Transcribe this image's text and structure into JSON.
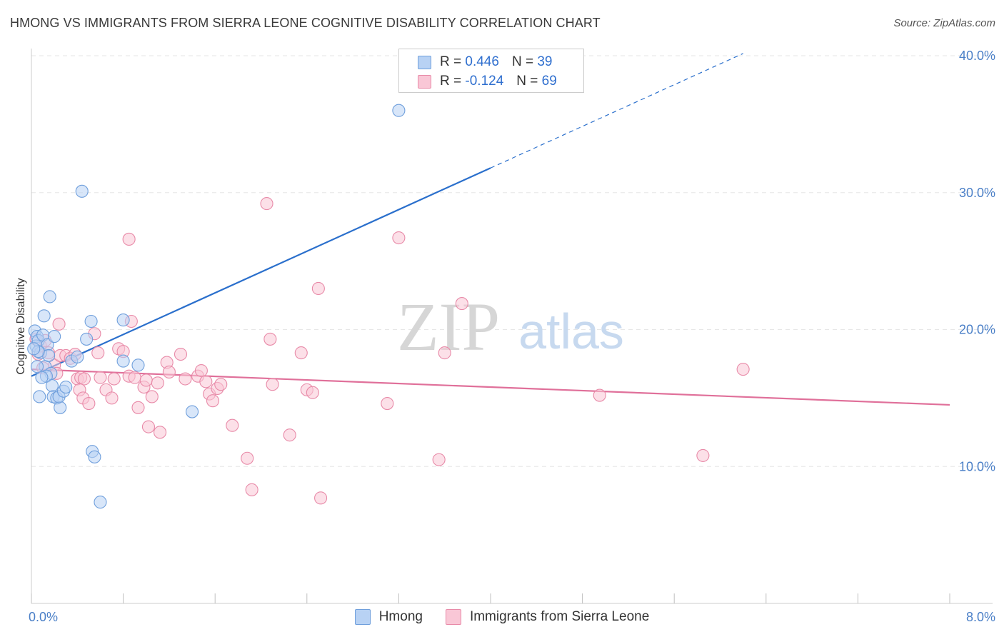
{
  "header": {
    "title": "HMONG VS IMMIGRANTS FROM SIERRA LEONE COGNITIVE DISABILITY CORRELATION CHART",
    "source": "Source: ZipAtlas.com"
  },
  "watermark": {
    "zip": "ZIP",
    "atlas": "atlas"
  },
  "legend": {
    "rows": [
      {
        "r_label": "R =",
        "r_value": "0.446",
        "n_label": "N =",
        "n_value": "39",
        "color": "#b8d2f4",
        "border": "#6f9fdc"
      },
      {
        "r_label": "R =",
        "r_value": "-0.124",
        "n_label": "N =",
        "n_value": "69",
        "color": "#f9c7d6",
        "border": "#e88aa8"
      }
    ]
  },
  "bottom_legend": [
    {
      "label": "Hmong",
      "color": "#b8d2f4",
      "border": "#6f9fdc"
    },
    {
      "label": "Immigrants from Sierra Leone",
      "color": "#f9c7d6",
      "border": "#e88aa8"
    }
  ],
  "chart_data": {
    "type": "scatter",
    "ylabel": "Cognitive Disability",
    "xlim": [
      0,
      8
    ],
    "ylim": [
      0,
      40
    ],
    "x_tick_labels": [
      {
        "value": 0,
        "label": "0.0%"
      },
      {
        "value": 8,
        "label": "8.0%"
      }
    ],
    "y_tick_labels": [
      {
        "value": 10,
        "label": "10.0%"
      },
      {
        "value": 20,
        "label": "20.0%"
      },
      {
        "value": 30,
        "label": "30.0%"
      },
      {
        "value": 40,
        "label": "40.0%"
      }
    ],
    "grid": true,
    "series": [
      {
        "name": "Hmong",
        "color": "#6f9fdc",
        "fill": "#b8d2f4",
        "trend_color": "#2a6fcc",
        "trend": {
          "x0": 0,
          "y0": 16.6,
          "x1": 4.0,
          "y1": 31.8,
          "dashed_to_x": 6.2
        },
        "points": [
          [
            0.03,
            19.9
          ],
          [
            0.05,
            19.5
          ],
          [
            0.04,
            18.8
          ],
          [
            0.06,
            19.2
          ],
          [
            0.08,
            18.3
          ],
          [
            0.1,
            19.6
          ],
          [
            0.12,
            17.3
          ],
          [
            0.14,
            18.9
          ],
          [
            0.15,
            18.1
          ],
          [
            0.17,
            16.8
          ],
          [
            0.13,
            16.6
          ],
          [
            0.09,
            16.5
          ],
          [
            0.11,
            21.0
          ],
          [
            0.16,
            22.4
          ],
          [
            0.2,
            19.5
          ],
          [
            0.18,
            15.9
          ],
          [
            0.19,
            15.1
          ],
          [
            0.22,
            15.0
          ],
          [
            0.25,
            14.3
          ],
          [
            0.24,
            15.1
          ],
          [
            0.28,
            15.5
          ],
          [
            0.3,
            15.8
          ],
          [
            0.07,
            15.1
          ],
          [
            0.05,
            17.3
          ],
          [
            0.35,
            17.7
          ],
          [
            0.4,
            18.0
          ],
          [
            0.48,
            19.3
          ],
          [
            0.52,
            20.6
          ],
          [
            0.44,
            30.1
          ],
          [
            0.8,
            20.7
          ],
          [
            0.8,
            17.7
          ],
          [
            0.93,
            17.4
          ],
          [
            1.4,
            14.0
          ],
          [
            0.53,
            11.1
          ],
          [
            0.55,
            10.7
          ],
          [
            0.6,
            7.4
          ],
          [
            3.2,
            36.0
          ],
          [
            0.06,
            18.4
          ],
          [
            0.02,
            18.6
          ]
        ]
      },
      {
        "name": "Immigrants from Sierra Leone",
        "color": "#e88aa8",
        "fill": "#f9c7d6",
        "trend_color": "#e0709a",
        "trend": {
          "x0": 0,
          "y0": 17.1,
          "x1": 8.0,
          "y1": 14.5
        },
        "points": [
          [
            0.04,
            19.3
          ],
          [
            0.06,
            18.2
          ],
          [
            0.08,
            18.8
          ],
          [
            0.12,
            19.2
          ],
          [
            0.15,
            18.3
          ],
          [
            0.2,
            17.4
          ],
          [
            0.22,
            16.8
          ],
          [
            0.25,
            18.1
          ],
          [
            0.24,
            20.4
          ],
          [
            0.3,
            18.1
          ],
          [
            0.34,
            17.9
          ],
          [
            0.38,
            18.2
          ],
          [
            0.4,
            16.4
          ],
          [
            0.43,
            16.5
          ],
          [
            0.46,
            16.4
          ],
          [
            0.42,
            15.6
          ],
          [
            0.45,
            15.0
          ],
          [
            0.5,
            14.6
          ],
          [
            0.55,
            19.7
          ],
          [
            0.58,
            18.3
          ],
          [
            0.6,
            16.5
          ],
          [
            0.65,
            15.6
          ],
          [
            0.7,
            15.0
          ],
          [
            0.72,
            16.4
          ],
          [
            0.76,
            18.6
          ],
          [
            0.8,
            18.4
          ],
          [
            0.85,
            16.6
          ],
          [
            0.87,
            20.6
          ],
          [
            0.9,
            16.5
          ],
          [
            0.93,
            14.3
          ],
          [
            0.98,
            15.8
          ],
          [
            1.0,
            16.3
          ],
          [
            1.05,
            15.1
          ],
          [
            1.02,
            12.9
          ],
          [
            1.12,
            12.5
          ],
          [
            1.18,
            17.6
          ],
          [
            1.2,
            16.9
          ],
          [
            1.1,
            16.1
          ],
          [
            1.3,
            18.2
          ],
          [
            1.34,
            16.4
          ],
          [
            1.45,
            16.6
          ],
          [
            1.48,
            17.0
          ],
          [
            1.52,
            16.2
          ],
          [
            1.55,
            15.3
          ],
          [
            1.58,
            14.8
          ],
          [
            1.62,
            15.7
          ],
          [
            1.65,
            16.0
          ],
          [
            1.75,
            13.0
          ],
          [
            1.88,
            10.6
          ],
          [
            1.92,
            8.3
          ],
          [
            2.05,
            29.2
          ],
          [
            2.08,
            19.3
          ],
          [
            2.1,
            16.0
          ],
          [
            2.25,
            12.3
          ],
          [
            2.35,
            18.3
          ],
          [
            2.4,
            15.6
          ],
          [
            2.45,
            15.4
          ],
          [
            2.5,
            23.0
          ],
          [
            2.52,
            7.7
          ],
          [
            3.1,
            14.6
          ],
          [
            3.2,
            26.7
          ],
          [
            3.55,
            10.5
          ],
          [
            3.6,
            18.3
          ],
          [
            3.75,
            21.9
          ],
          [
            0.85,
            26.6
          ],
          [
            4.95,
            15.2
          ],
          [
            5.85,
            10.8
          ],
          [
            6.2,
            17.1
          ],
          [
            0.1,
            17.2
          ]
        ]
      }
    ]
  }
}
